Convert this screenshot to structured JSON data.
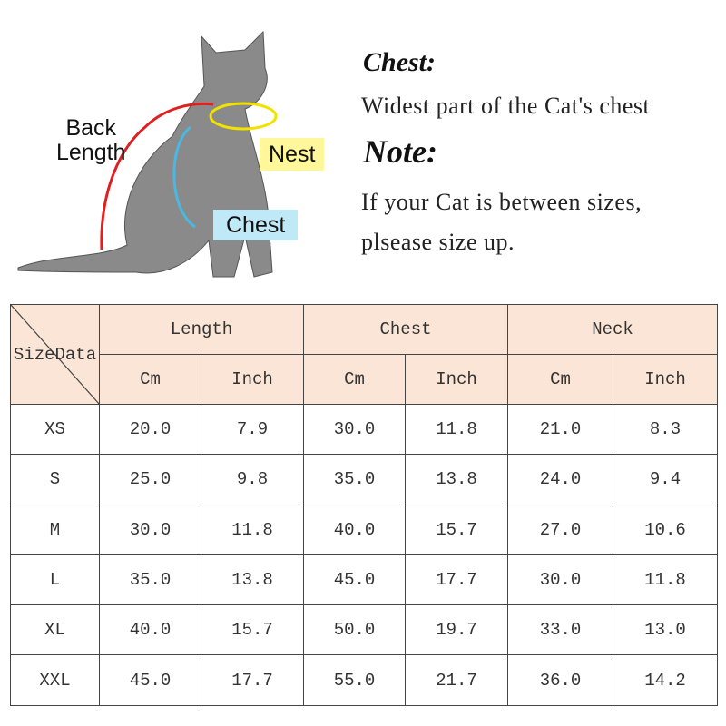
{
  "illustration": {
    "labels": {
      "back_length_line1": "Back",
      "back_length_line2": "Length",
      "nest": "Nest",
      "chest": "Chest"
    },
    "colors": {
      "back_length": "#e02020",
      "nest": "#f2e200",
      "chest": "#4ab8e0"
    }
  },
  "info": {
    "chest_heading": "Chest:",
    "chest_text": "Widest part of the  Cat's  chest",
    "note_heading": "Note:",
    "note_line1": "If your  Cat  is between sizes,",
    "note_line2": "plsease size up."
  },
  "table": {
    "corner_left": "Size",
    "corner_right": "Data",
    "groups": [
      "Length",
      "Chest",
      "Neck"
    ],
    "units": [
      "Cm",
      "Inch",
      "Cm",
      "Inch",
      "Cm",
      "Inch"
    ],
    "header_color": "#fbe5d6",
    "rows": [
      {
        "size": "XS",
        "values": [
          "20.0",
          "7.9",
          "30.0",
          "11.8",
          "21.0",
          "8.3"
        ]
      },
      {
        "size": "S",
        "values": [
          "25.0",
          "9.8",
          "35.0",
          "13.8",
          "24.0",
          "9.4"
        ]
      },
      {
        "size": "M",
        "values": [
          "30.0",
          "11.8",
          "40.0",
          "15.7",
          "27.0",
          "10.6"
        ]
      },
      {
        "size": "L",
        "values": [
          "35.0",
          "13.8",
          "45.0",
          "17.7",
          "30.0",
          "11.8"
        ]
      },
      {
        "size": "XL",
        "values": [
          "40.0",
          "15.7",
          "50.0",
          "19.7",
          "33.0",
          "13.0"
        ]
      },
      {
        "size": "XXL",
        "values": [
          "45.0",
          "17.7",
          "55.0",
          "21.7",
          "36.0",
          "14.2"
        ]
      }
    ]
  }
}
